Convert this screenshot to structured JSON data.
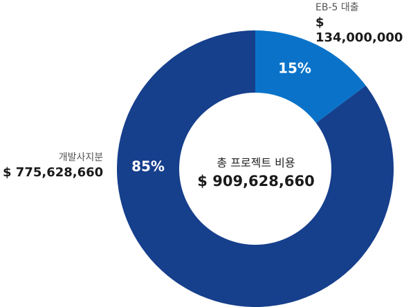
{
  "chart_data": {
    "type": "pie",
    "center_label": "총 프로젝트 비용",
    "center_total": "$ 909,628,660",
    "slices": [
      {
        "label": "EB-5 대출",
        "amount": "$ 134,000,000",
        "value": 134000000,
        "percent_label": "15%",
        "color": "#0a73c9"
      },
      {
        "label": "개발사지분",
        "amount": "$ 775,628,660",
        "value": 775628660,
        "percent_label": "85%",
        "color": "#163f8c"
      }
    ]
  }
}
